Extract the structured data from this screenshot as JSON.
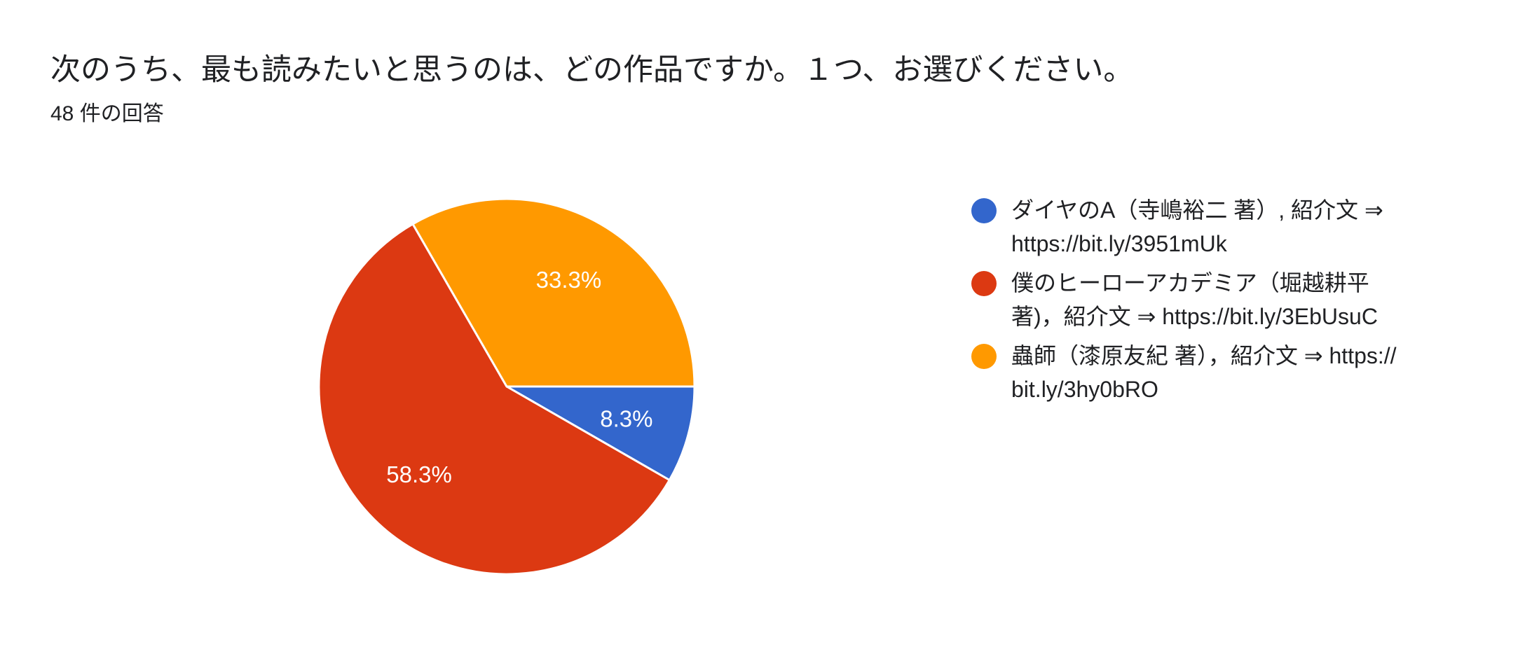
{
  "question": {
    "title": "次のうち、最も読みたいと思うのは、どの作品ですか。１つ、お選びください。",
    "response_count": "48 件の回答"
  },
  "colors": {
    "blue": "#3366CC",
    "red": "#DC3912",
    "orange": "#FF9900",
    "text": "#202124",
    "label": "#FFFFFF"
  },
  "legend": {
    "items": [
      {
        "color": "#3366CC",
        "lines": [
          "ダイヤのA（寺嶋裕二 著）, 紹介文 ⇒",
          "https://bit.ly/3951mUk"
        ]
      },
      {
        "color": "#DC3912",
        "lines": [
          "僕のヒーローアカデミア（堀越耕平",
          "著)，紹介文 ⇒ https://bit.ly/3EbUsuC"
        ]
      },
      {
        "color": "#FF9900",
        "lines": [
          "蟲師（漆原友紀 著），紹介文 ⇒ https://",
          "bit.ly/3hy0bRO"
        ]
      }
    ]
  },
  "chart_data": {
    "type": "pie",
    "title": "次のうち、最も読みたいと思うのは、どの作品ですか。１つ、お選びください。",
    "subtitle": "48 件の回答",
    "total_responses": 48,
    "categories": [
      "ダイヤのA（寺嶋裕二 著）, 紹介文 ⇒ https://bit.ly/3951mUk",
      "僕のヒーローアカデミア（堀越耕平 著)，紹介文 ⇒ https://bit.ly/3EbUsuC",
      "蟲師（漆原友紀 著），紹介文 ⇒ https://bit.ly/3hy0bRO"
    ],
    "values": [
      8.3,
      58.3,
      33.3
    ],
    "counts": [
      4,
      28,
      16
    ],
    "labels": [
      "8.3%",
      "58.3%",
      "33.3%"
    ],
    "colors": [
      "#3366CC",
      "#DC3912",
      "#FF9900"
    ],
    "start_angle_deg": 0,
    "direction": "clockwise",
    "legend_position": "right"
  }
}
